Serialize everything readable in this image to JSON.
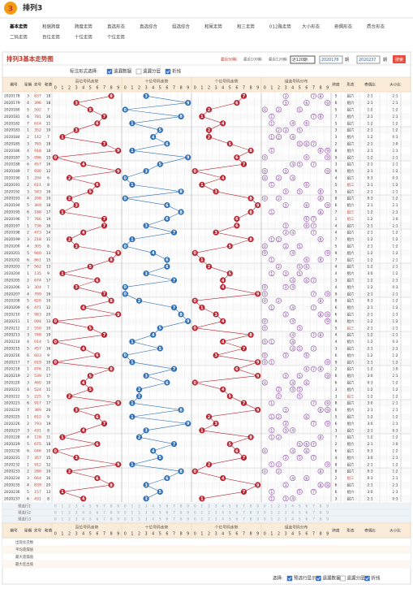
{
  "header": {
    "title": "排列3"
  },
  "nav": [
    [
      "基本走势",
      "和值跨度",
      "跨度走势",
      "直选形态",
      "直选综合",
      "组选综合",
      "和尾走势",
      "和三走势",
      "012路走势",
      "大小形态",
      "奇偶形态",
      "质合形态"
    ],
    [
      "二码走势",
      "百位走势",
      "十位走势",
      "个位走势"
    ]
  ],
  "section_title": "排列3基本走势图",
  "controls": {
    "recent": [
      "最近50期",
      "最近100期",
      "最近120期"
    ],
    "select": "近120期",
    "from": "2020178",
    "to": "2020237",
    "period": "期",
    "search": "搜索"
  },
  "options": {
    "label": "标注形式选择:",
    "items": [
      {
        "text": "遗漏数据",
        "checked": true
      },
      {
        "text": "遗漏分层",
        "checked": false
      },
      {
        "text": "折线",
        "checked": true
      }
    ]
  },
  "table": {
    "columns": {
      "issue": "期号",
      "week": "星期",
      "draw": "奖号",
      "sum": "和值",
      "groups": [
        "百位号码走势",
        "十位号码走势",
        "个位号码走势",
        "组选号码分布"
      ],
      "span": "跨度",
      "shape": "形态",
      "oe": "奇偶比",
      "bs": "大小比"
    },
    "digits": [
      0,
      1,
      2,
      3,
      4,
      5,
      6,
      7,
      8,
      9
    ],
    "rows": [
      [
        "2020178",
        3,
        "837",
        [
          8,
          3,
          7
        ],
        18,
        5,
        "组六",
        "2:1",
        "2:1"
      ],
      [
        "2020179",
        4,
        "396",
        [
          3,
          9,
          6
        ],
        18,
        6,
        "组六",
        "2:1",
        "2:1"
      ],
      [
        "2020180",
        5,
        "502",
        [
          5,
          0,
          2
        ],
        7,
        5,
        "组六",
        "1:2",
        "1:2"
      ],
      [
        "2020181",
        6,
        "781",
        [
          7,
          8,
          1
        ],
        16,
        7,
        "组六",
        "2:1",
        "2:1"
      ],
      [
        "2020182",
        7,
        "614",
        [
          6,
          1,
          4
        ],
        11,
        5,
        "组六",
        "1:2",
        "1:2"
      ],
      [
        "2020183",
        1,
        "352",
        [
          3,
          5,
          2
        ],
        10,
        3,
        "组六",
        "2:1",
        "1:2"
      ],
      [
        "2020184",
        2,
        "142",
        [
          1,
          4,
          2
        ],
        7,
        3,
        "组六",
        "1:2",
        "0:3"
      ],
      [
        "2020185",
        3,
        "765",
        [
          7,
          6,
          5
        ],
        18,
        2,
        "组六",
        "2:1",
        "3:0"
      ],
      [
        "2020186",
        4,
        "918",
        [
          9,
          1,
          8
        ],
        18,
        8,
        "组六",
        "2:1",
        "2:1"
      ],
      [
        "2020187",
        5,
        "096",
        [
          0,
          9,
          6
        ],
        15,
        9,
        "组六",
        "1:2",
        "2:1"
      ],
      [
        "2020188",
        6,
        "457",
        [
          4,
          5,
          7
        ],
        16,
        3,
        "组六",
        "2:1",
        "2:1"
      ],
      [
        "2020189",
        7,
        "930",
        [
          9,
          3,
          0
        ],
        12,
        9,
        "组六",
        "2:1",
        "1:2"
      ],
      [
        "2020190",
        1,
        "204",
        [
          2,
          0,
          4
        ],
        6,
        4,
        "组六",
        "0:3",
        "0:3"
      ],
      [
        "2020191",
        2,
        "611",
        [
          6,
          1,
          1
        ],
        8,
        5,
        "组三",
        "2:1",
        "1:2"
      ],
      [
        "2020192",
        3,
        "583",
        [
          5,
          8,
          3
        ],
        16,
        5,
        "组六",
        "2:1",
        "2:1"
      ],
      [
        "2020193",
        4,
        "208",
        [
          2,
          0,
          8
        ],
        10,
        8,
        "组六",
        "0:3",
        "1:2"
      ],
      [
        "2020194",
        5,
        "369",
        [
          3,
          6,
          9
        ],
        18,
        6,
        "组六",
        "2:1",
        "2:1"
      ],
      [
        "2020195",
        6,
        "188",
        [
          1,
          8,
          8
        ],
        17,
        7,
        "组三",
        "1:2",
        "2:1"
      ],
      [
        "2020196",
        7,
        "766",
        [
          7,
          6,
          6
        ],
        19,
        1,
        "组三",
        "1:2",
        "3:0"
      ],
      [
        "2020197",
        1,
        "736",
        [
          7,
          3,
          6
        ],
        16,
        4,
        "组六",
        "2:1",
        "2:1"
      ],
      [
        "2020198",
        2,
        "473",
        [
          4,
          7,
          3
        ],
        14,
        4,
        "组六",
        "2:1",
        "1:2"
      ],
      [
        "2020199",
        3,
        "218",
        [
          2,
          1,
          8
        ],
        11,
        7,
        "组六",
        "1:2",
        "1:2"
      ],
      [
        "2020200",
        4,
        "305",
        [
          3,
          0,
          5
        ],
        8,
        5,
        "组六",
        "2:1",
        "1:2"
      ],
      [
        "2020201",
        5,
        "940",
        [
          9,
          4,
          0
        ],
        13,
        9,
        "组六",
        "1:2",
        "1:2"
      ],
      [
        "2020202",
        6,
        "861",
        [
          8,
          6,
          1
        ],
        15,
        7,
        "组六",
        "1:2",
        "2:1"
      ],
      [
        "2020203",
        7,
        "562",
        [
          5,
          6,
          2
        ],
        13,
        4,
        "组六",
        "1:2",
        "2:1"
      ],
      [
        "2020204",
        1,
        "135",
        [
          1,
          3,
          5
        ],
        9,
        4,
        "组六",
        "3:0",
        "1:2"
      ],
      [
        "2020205",
        2,
        "674",
        [
          6,
          7,
          4
        ],
        17,
        3,
        "组六",
        "1:2",
        "2:1"
      ],
      [
        "2020206",
        3,
        "304",
        [
          3,
          0,
          4
        ],
        7,
        4,
        "组六",
        "1:2",
        "0:3"
      ],
      [
        "2020207",
        4,
        "709",
        [
          7,
          0,
          9
        ],
        16,
        9,
        "组六",
        "2:1",
        "2:1"
      ],
      [
        "2020208",
        5,
        "820",
        [
          8,
          2,
          0
        ],
        10,
        8,
        "组六",
        "0:3",
        "1:2"
      ],
      [
        "2020209",
        6,
        "471",
        [
          4,
          7,
          1
        ],
        12,
        6,
        "组六",
        "2:1",
        "1:2"
      ],
      [
        "2020210",
        7,
        "983",
        [
          9,
          8,
          3
        ],
        20,
        6,
        "组六",
        "2:1",
        "2:1"
      ],
      [
        "2020211",
        1,
        "094",
        [
          0,
          9,
          4
        ],
        13,
        9,
        "组六",
        "1:2",
        "1:2"
      ],
      [
        "2020212",
        2,
        "550",
        [
          5,
          5,
          0
        ],
        10,
        5,
        "组三",
        "2:1",
        "2:1"
      ],
      [
        "2020213",
        3,
        "748",
        [
          7,
          4,
          8
        ],
        19,
        4,
        "组六",
        "1:2",
        "2:1"
      ],
      [
        "2020214",
        4,
        "014",
        [
          0,
          1,
          4
        ],
        5,
        4,
        "组六",
        "1:2",
        "0:3"
      ],
      [
        "2020215",
        5,
        "457",
        [
          4,
          5,
          7
        ],
        16,
        3,
        "组六",
        "2:1",
        "2:1"
      ],
      [
        "2020216",
        6,
        "603",
        [
          6,
          0,
          3
        ],
        9,
        6,
        "组六",
        "1:2",
        "1:2"
      ],
      [
        "2020217",
        7,
        "019",
        [
          0,
          1,
          9
        ],
        10,
        9,
        "组六",
        "2:1",
        "1:2"
      ],
      [
        "2020218",
        1,
        "876",
        [
          8,
          7,
          6
        ],
        21,
        2,
        "组六",
        "1:2",
        "3:0"
      ],
      [
        "2020219",
        2,
        "539",
        [
          5,
          3,
          9
        ],
        17,
        6,
        "组六",
        "3:0",
        "2:1"
      ],
      [
        "2020220",
        3,
        "460",
        [
          4,
          6,
          0
        ],
        10,
        6,
        "组六",
        "0:3",
        "1:2"
      ],
      [
        "2020221",
        4,
        "524",
        [
          5,
          2,
          4
        ],
        11,
        3,
        "组六",
        "1:2",
        "1:2"
      ],
      [
        "2020222",
        5,
        "225",
        [
          2,
          2,
          5
        ],
        9,
        3,
        "组三",
        "1:2",
        "1:2"
      ],
      [
        "2020223",
        6,
        "917",
        [
          9,
          1,
          7
        ],
        17,
        8,
        "组六",
        "3:0",
        "2:1"
      ],
      [
        "2020224",
        7,
        "389",
        [
          3,
          8,
          9
        ],
        20,
        6,
        "组六",
        "2:1",
        "2:1"
      ],
      [
        "2020225",
        1,
        "612",
        [
          6,
          1,
          2
        ],
        9,
        5,
        "组六",
        "1:2",
        "1:2"
      ],
      [
        "2020226",
        2,
        "793",
        [
          7,
          9,
          3
        ],
        19,
        6,
        "组六",
        "3:0",
        "2:1"
      ],
      [
        "2020227",
        3,
        "431",
        [
          4,
          3,
          1
        ],
        8,
        3,
        "组六",
        "2:1",
        "0:3"
      ],
      [
        "2020228",
        4,
        "128",
        [
          1,
          2,
          8
        ],
        11,
        7,
        "组六",
        "1:2",
        "1:2"
      ],
      [
        "2020229",
        5,
        "675",
        [
          6,
          7,
          5
        ],
        18,
        2,
        "组六",
        "2:1",
        "3:0"
      ],
      [
        "2020230",
        6,
        "046",
        [
          0,
          4,
          6
        ],
        10,
        6,
        "组六",
        "0:3",
        "1:2"
      ],
      [
        "2020231",
        7,
        "357",
        [
          3,
          5,
          7
        ],
        15,
        4,
        "组六",
        "3:0",
        "2:1"
      ],
      [
        "2020232",
        1,
        "912",
        [
          9,
          1,
          2
        ],
        12,
        8,
        "组六",
        "2:1",
        "1:2"
      ],
      [
        "2020233",
        2,
        "280",
        [
          2,
          8,
          0
        ],
        10,
        8,
        "组六",
        "0:3",
        "1:2"
      ],
      [
        "2020234",
        3,
        "664",
        [
          6,
          6,
          4
        ],
        16,
        2,
        "组三",
        "0:3",
        "2:1"
      ],
      [
        "2020235",
        4,
        "839",
        [
          8,
          3,
          9
        ],
        20,
        6,
        "组六",
        "2:1",
        "2:1"
      ],
      [
        "2020236",
        5,
        "157",
        [
          1,
          5,
          7
        ],
        13,
        6,
        "组六",
        "3:0",
        "2:1"
      ],
      [
        "2020237",
        6,
        "431",
        [
          4,
          3,
          1
        ],
        8,
        3,
        "组六",
        "2:1",
        "0:3"
      ]
    ],
    "preselect": [
      "预选行1",
      "预选行2",
      "预选行3"
    ],
    "stats": [
      "出现总次数",
      "平均遗漏值",
      "最大遗漏值",
      "最大连出值"
    ]
  },
  "footer": {
    "label": "选择:",
    "items": [
      {
        "text": "预选行显示",
        "checked": true
      },
      {
        "text": "遗漏数据",
        "checked": true
      },
      {
        "text": "遗漏分层",
        "checked": false
      },
      {
        "text": "折线",
        "checked": true
      }
    ]
  }
}
